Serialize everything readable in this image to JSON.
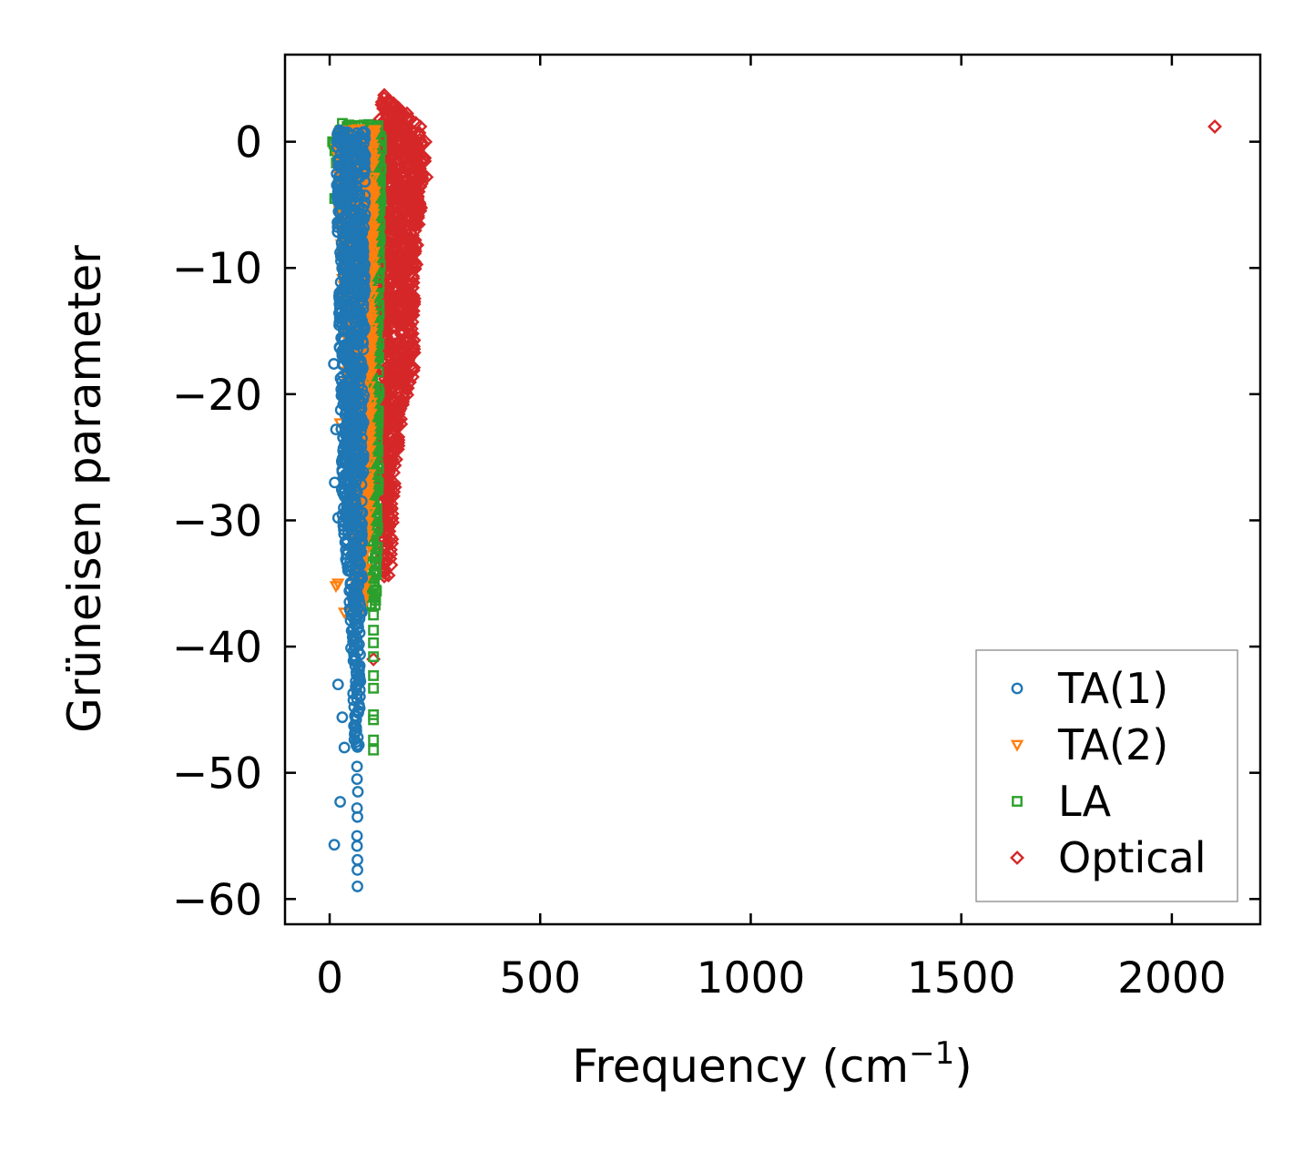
{
  "chart_data": {
    "type": "scatter",
    "title": "",
    "xlabel": "Frequency (cm",
    "xlabel_sup": "−1",
    "xlabel_close": ")",
    "ylabel": "Grüneisen parameter",
    "xlim": [
      -106,
      2210
    ],
    "ylim": [
      -62,
      6.9
    ],
    "xticks": [
      0,
      500,
      1000,
      1500,
      2000
    ],
    "xtick_labels": [
      "0",
      "500",
      "1000",
      "1500",
      "2000"
    ],
    "yticks": [
      0,
      -10,
      -20,
      -30,
      -40,
      -50,
      -60
    ],
    "ytick_labels": [
      "0",
      "−10",
      "−20",
      "−30",
      "−40",
      "−50",
      "−60"
    ],
    "grid": false,
    "legend_position": "bottom-right",
    "series": [
      {
        "name": "Optical",
        "marker": "diamond",
        "color": "#d62728",
        "envelope": [
          [
            3.8,
            120,
            135
          ],
          [
            2,
            118,
            200
          ],
          [
            0,
            118,
            230
          ],
          [
            -10,
            118,
            205
          ],
          [
            -18,
            118,
            200
          ],
          [
            -21,
            118,
            175
          ],
          [
            -25,
            118,
            160
          ],
          [
            -30,
            118,
            150
          ],
          [
            -34.5,
            130,
            145
          ]
        ],
        "outliers": [
          [
            2102,
            1.2
          ],
          [
            104,
            -41
          ],
          [
            230,
            -2.8
          ],
          [
            215,
            1.2
          ]
        ]
      },
      {
        "name": "LA",
        "marker": "square",
        "color": "#2ca02c",
        "envelope": [
          [
            1.5,
            30,
            125
          ],
          [
            0,
            10,
            125
          ],
          [
            -10,
            40,
            120
          ],
          [
            -20,
            70,
            118
          ],
          [
            -30,
            95,
            115
          ],
          [
            -37,
            95,
            112
          ]
        ],
        "outliers": [
          [
            7,
            0
          ],
          [
            104,
            -37.5
          ],
          [
            104,
            -38.7
          ],
          [
            104,
            -39.7
          ],
          [
            104,
            -40.8
          ],
          [
            104,
            -42.3
          ],
          [
            104,
            -43.3
          ],
          [
            104,
            -45.4
          ],
          [
            104,
            -45.8
          ],
          [
            104,
            -47.4
          ],
          [
            104,
            -48.2
          ],
          [
            12,
            -4.5
          ],
          [
            120,
            -9.8
          ]
        ]
      },
      {
        "name": "TA(2)",
        "marker": "triangle-down",
        "color": "#ff7f0e",
        "envelope": [
          [
            1,
            20,
            108
          ],
          [
            0,
            15,
            108
          ],
          [
            -10,
            30,
            105
          ],
          [
            -20,
            40,
            100
          ],
          [
            -30,
            55,
            95
          ],
          [
            -37,
            60,
            80
          ]
        ],
        "outliers": [
          [
            15,
            -35.2
          ],
          [
            20,
            -35.0
          ],
          [
            25,
            -22.3
          ],
          [
            60,
            -37.3
          ],
          [
            35,
            -37.3
          ]
        ]
      },
      {
        "name": "TA(1)",
        "marker": "circle",
        "color": "#1f77b4",
        "envelope": [
          [
            1,
            20,
            85
          ],
          [
            0,
            15,
            85
          ],
          [
            -10,
            20,
            85
          ],
          [
            -20,
            25,
            82
          ],
          [
            -30,
            30,
            80
          ],
          [
            -35,
            45,
            78
          ],
          [
            -45,
            55,
            72
          ],
          [
            -48,
            60,
            70
          ]
        ],
        "outliers": [
          [
            11,
            -55.7
          ],
          [
            25,
            -52.3
          ],
          [
            20,
            -43
          ],
          [
            30,
            -45.6
          ],
          [
            35,
            -48
          ],
          [
            65,
            -49.5
          ],
          [
            65,
            -50.5
          ],
          [
            67,
            -51.5
          ],
          [
            65,
            -52.8
          ],
          [
            66,
            -53.5
          ],
          [
            65,
            -55
          ],
          [
            65,
            -55.8
          ],
          [
            66,
            -56.9
          ],
          [
            66,
            -57.7
          ],
          [
            66,
            -59
          ],
          [
            10,
            -17.6
          ],
          [
            15,
            -22.8
          ],
          [
            12,
            -27
          ],
          [
            20,
            -29.8
          ]
        ]
      }
    ]
  }
}
